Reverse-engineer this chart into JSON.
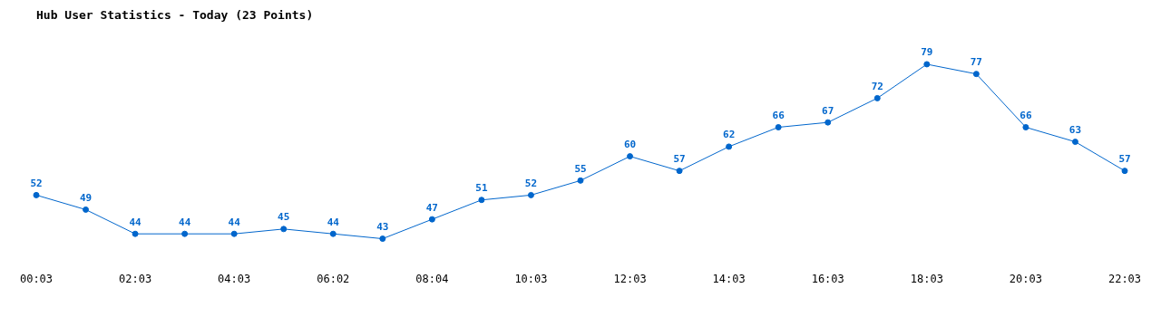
{
  "chart_data": {
    "type": "line",
    "title": "Hub User Statistics - Today (23 Points)",
    "categories": [
      "00:03",
      null,
      "02:03",
      null,
      "04:03",
      null,
      "06:02",
      null,
      "08:04",
      null,
      "10:03",
      null,
      "12:03",
      null,
      "14:03",
      null,
      "16:03",
      null,
      "18:03",
      null,
      "20:03",
      null,
      "22:03"
    ],
    "series": [
      {
        "color": "#0066cc",
        "values": [
          52,
          49,
          44,
          44,
          44,
          45,
          44,
          43,
          47,
          51,
          52,
          55,
          60,
          57,
          62,
          66,
          67,
          72,
          79,
          77,
          66,
          63,
          57
        ]
      }
    ],
    "data_labels": true,
    "marker": "circle",
    "grid": false,
    "legend": false
  }
}
